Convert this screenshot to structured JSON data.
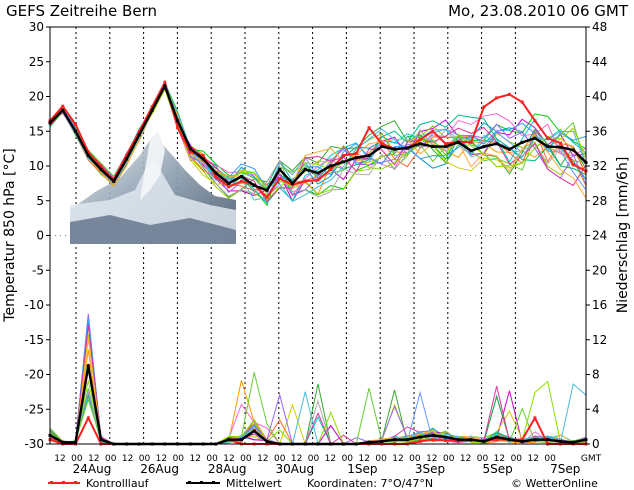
{
  "chart_data": {
    "type": "line",
    "title": "GEFS Zeitreihe Bern",
    "run": "Mo, 23.08.2010 06 GMT",
    "ylabel_left": "Temperatur 850 hPa [°C]",
    "ylabel_right": "Niederschlag [mm/6h]",
    "ylim_left": [
      -30,
      30
    ],
    "ylim_right": [
      0,
      48
    ],
    "yticks_left": [
      30,
      25,
      20,
      15,
      10,
      5,
      0,
      -5,
      -10,
      -15,
      -20,
      -25,
      -30
    ],
    "yticks_right": [
      48,
      44,
      40,
      36,
      32,
      28,
      24,
      20,
      16,
      12,
      8,
      4,
      0
    ],
    "x_hour_labels": [
      "12",
      "00",
      "12",
      "00",
      "12",
      "00",
      "12",
      "00",
      "12",
      "00",
      "12",
      "00",
      "12",
      "00",
      "12",
      "00",
      "12",
      "00",
      "12",
      "00",
      "12",
      "00",
      "12",
      "00",
      "12",
      "00",
      "12",
      "00",
      "12",
      "00",
      "GMT"
    ],
    "x_date_labels": [
      "24Aug",
      "26Aug",
      "28Aug",
      "30Aug",
      "1Sep",
      "3Sep",
      "5Sep",
      "7Sep"
    ],
    "legend": [
      {
        "label": "Kontrolllauf",
        "color": "#ff2020"
      },
      {
        "label": "Mittelwert",
        "color": "#000000"
      }
    ],
    "coordinates": "Koordinaten: 7°O/47°N",
    "credit": "© WetterOnline",
    "temperature": {
      "mean": [
        16.2,
        18.0,
        15.0,
        11.5,
        9.5,
        7.8,
        11.0,
        14.5,
        18.0,
        21.5,
        16.5,
        12.5,
        11.0,
        9.0,
        7.5,
        8.5,
        7.2,
        6.5,
        9.5,
        7.5,
        9.5,
        9.0,
        10.0,
        10.6,
        11.2,
        11.5,
        12.8,
        12.4,
        12.6,
        13.2,
        12.8,
        12.8,
        13.4,
        12.2,
        12.8,
        13.2,
        12.4,
        13.4,
        14.0,
        12.8,
        12.7,
        12.3,
        10.5
      ],
      "control": [
        16.5,
        18.6,
        16.0,
        12.0,
        10.0,
        8.0,
        11.5,
        15.0,
        18.5,
        22.0,
        15.5,
        12.0,
        11.5,
        8.5,
        7.0,
        7.8,
        7.3,
        5.5,
        8.2,
        7.3,
        7.8,
        8.0,
        9.5,
        11.5,
        11.8,
        15.5,
        13.2,
        12.5,
        12.5,
        13.8,
        15.0,
        13.2,
        13.5,
        13.4,
        18.5,
        19.8,
        20.3,
        19.2,
        16.5,
        14.0,
        13.3,
        10.2,
        9.3
      ]
    },
    "precipitation_mm_6h": {
      "mean": [
        1.0,
        0.2,
        0.2,
        9.0,
        0.5,
        0,
        0,
        0,
        0,
        0,
        0,
        0,
        0,
        0,
        0.5,
        0.5,
        1.5,
        0.3,
        0,
        0,
        0,
        0,
        0,
        0,
        0,
        0.2,
        0.3,
        0.5,
        0.5,
        0.8,
        1.0,
        0.8,
        0.5,
        0.5,
        0.3,
        0.8,
        0.5,
        0.3,
        0.5,
        0.5,
        0.3,
        0.2,
        0.5
      ],
      "control": [
        0.5,
        0,
        0,
        3.0,
        0,
        0,
        0,
        0,
        0,
        0,
        0,
        0,
        0,
        0,
        0.5,
        0,
        0,
        0,
        0,
        0,
        0,
        0,
        0,
        0,
        0,
        0,
        0,
        0,
        0,
        0.3,
        0.5,
        0.4,
        0.4,
        0.4,
        0.4,
        0.5,
        0.5,
        0.5,
        3.0,
        0,
        0,
        0,
        0
      ]
    },
    "ensemble_note": "21 GEFS members shown as thin colored lines around the mean"
  }
}
